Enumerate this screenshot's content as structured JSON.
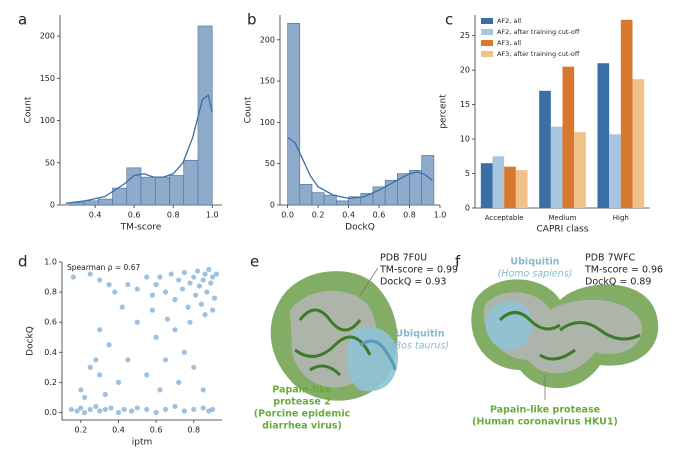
{
  "chart_data": [
    {
      "type": "histogram",
      "label": "a",
      "xlabel": "TM-score",
      "ylabel": "Count",
      "color": "#8eabcc",
      "bins": [
        0.27,
        0.343,
        0.416,
        0.489,
        0.562,
        0.635,
        0.708,
        0.781,
        0.854,
        0.927,
        1.0
      ],
      "counts": [
        3,
        5,
        7,
        20,
        44,
        33,
        33,
        35,
        53,
        212
      ],
      "kde": {
        "x": [
          0.25,
          0.35,
          0.45,
          0.55,
          0.6,
          0.65,
          0.7,
          0.75,
          0.8,
          0.85,
          0.9,
          0.95,
          0.98,
          1.0
        ],
        "y": [
          2,
          5,
          10,
          25,
          35,
          37,
          33,
          33,
          37,
          50,
          80,
          125,
          130,
          110
        ]
      },
      "line_color": "#3a6ea5",
      "xlim": [
        0.22,
        1.05
      ],
      "ylim": [
        0,
        225
      ],
      "xticks": [
        0.4,
        0.6,
        0.8,
        {
          "value": 1,
          "label": "1.0"
        }
      ],
      "yticks": [
        0,
        50,
        100,
        150,
        200
      ]
    },
    {
      "type": "histogram",
      "label": "b",
      "xlabel": "DockQ",
      "ylabel": "Count",
      "color": "#8eabcc",
      "bins": [
        0,
        0.08,
        0.16,
        0.24,
        0.32,
        0.4,
        0.48,
        0.56,
        0.64,
        0.72,
        0.8,
        0.88,
        0.96
      ],
      "counts": [
        220,
        25,
        15,
        12,
        5,
        10,
        14,
        22,
        30,
        38,
        42,
        60
      ],
      "kde": {
        "x": [
          0,
          0.05,
          0.1,
          0.15,
          0.2,
          0.3,
          0.4,
          0.5,
          0.6,
          0.7,
          0.8,
          0.85,
          0.9,
          0.95
        ],
        "y": [
          82,
          75,
          55,
          35,
          22,
          12,
          8,
          10,
          18,
          28,
          38,
          40,
          37,
          30
        ]
      },
      "line_color": "#3a6ea5",
      "xlim": [
        -0.05,
        1.0
      ],
      "ylim": [
        0,
        230
      ],
      "xticks": [
        {
          "value": 0,
          "label": "0.0"
        },
        0.2,
        0.4,
        0.6,
        0.8,
        {
          "value": 1,
          "label": "1.0"
        }
      ],
      "yticks": [
        0,
        50,
        100,
        150,
        200
      ]
    },
    {
      "type": "grouped_bar",
      "label": "c",
      "xlabel": "CAPRI class",
      "ylabel": "percent",
      "categories": [
        "Acceptable",
        "Medium",
        "High"
      ],
      "series": [
        {
          "name": "AF2, all",
          "color": "#3a6ea5",
          "values": [
            6.5,
            17,
            21
          ]
        },
        {
          "name": "AF2, after training cut-off",
          "color": "#a9c4de",
          "values": [
            7.5,
            11.8,
            10.7
          ]
        },
        {
          "name": "AF3, all",
          "color": "#d9772e",
          "values": [
            6,
            20.5,
            27.3
          ]
        },
        {
          "name": "AF3, after training cut-off",
          "color": "#f0c28a",
          "values": [
            5.5,
            11,
            18.7
          ]
        }
      ],
      "ylim": [
        0,
        28
      ],
      "yticks": [
        0,
        5,
        10,
        15,
        20,
        25
      ]
    },
    {
      "type": "scatter",
      "label": "d",
      "xlabel": "iptm",
      "ylabel": "DockQ",
      "annotation": "Spearman ρ = 0.67",
      "color": "#4f8cc9",
      "x": [
        0.15,
        0.18,
        0.2,
        0.22,
        0.25,
        0.28,
        0.3,
        0.33,
        0.36,
        0.4,
        0.43,
        0.47,
        0.5,
        0.55,
        0.6,
        0.65,
        0.7,
        0.75,
        0.8,
        0.85,
        0.88,
        0.9,
        0.2,
        0.25,
        0.3,
        0.35,
        0.3,
        0.4,
        0.45,
        0.5,
        0.42,
        0.55,
        0.6,
        0.62,
        0.65,
        0.7,
        0.72,
        0.75,
        0.8,
        0.85,
        0.22,
        0.38,
        0.45,
        0.5,
        0.35,
        0.28,
        0.33,
        0.58,
        0.66,
        0.78,
        0.6,
        0.62,
        0.65,
        0.68,
        0.7,
        0.72,
        0.74,
        0.75,
        0.77,
        0.78,
        0.8,
        0.81,
        0.82,
        0.83,
        0.84,
        0.85,
        0.86,
        0.87,
        0.88,
        0.89,
        0.9,
        0.91,
        0.92,
        0.55,
        0.58,
        0.16,
        0.25,
        0.3,
        0.86,
        0.9
      ],
      "y": [
        0.02,
        0.01,
        0.03,
        0.0,
        0.02,
        0.04,
        0.01,
        0.02,
        0.03,
        0.0,
        0.02,
        0.01,
        0.03,
        0.02,
        0.0,
        0.02,
        0.04,
        0.01,
        0.02,
        0.03,
        0.01,
        0.02,
        0.15,
        0.3,
        0.25,
        0.45,
        0.55,
        0.2,
        0.35,
        0.6,
        0.7,
        0.25,
        0.5,
        0.15,
        0.35,
        0.55,
        0.2,
        0.4,
        0.3,
        0.15,
        0.1,
        0.8,
        0.85,
        0.82,
        0.85,
        0.35,
        0.12,
        0.68,
        0.62,
        0.6,
        0.85,
        0.9,
        0.8,
        0.92,
        0.75,
        0.88,
        0.82,
        0.93,
        0.7,
        0.86,
        0.9,
        0.78,
        0.94,
        0.84,
        0.72,
        0.88,
        0.92,
        0.8,
        0.95,
        0.86,
        0.9,
        0.76,
        0.92,
        0.9,
        0.78,
        0.9,
        0.92,
        0.88,
        0.65,
        0.68
      ],
      "xlim": [
        0.1,
        0.95
      ],
      "ylim": [
        -0.05,
        1.0
      ],
      "xticks": [
        0.2,
        0.4,
        0.6,
        0.8
      ],
      "yticks": [
        {
          "value": 0,
          "label": "0.0"
        },
        0.2,
        0.4,
        0.6,
        0.8,
        {
          "value": 1,
          "label": "1.0"
        }
      ]
    }
  ],
  "structures": [
    {
      "label": "e",
      "pdb": "PDB 7F0U",
      "tm": "TM-score = 0.99",
      "dockq": "DockQ = 0.93",
      "partner": "Ubiquitin",
      "partner_species": "(Bos taurus)",
      "protease": [
        "Papain-like",
        "protease 2",
        "(Porcine epidemic",
        "diarrhea virus)"
      ]
    },
    {
      "label": "f",
      "pdb": "PDB 7WFC",
      "tm": "TM-score = 0.96",
      "dockq": "DockQ = 0.89",
      "partner": "Ubiquitin",
      "partner_species": "(Homo sapiens)",
      "protease": [
        "Papain-like protease",
        "(Human coronavirus HKU1)"
      ]
    }
  ]
}
